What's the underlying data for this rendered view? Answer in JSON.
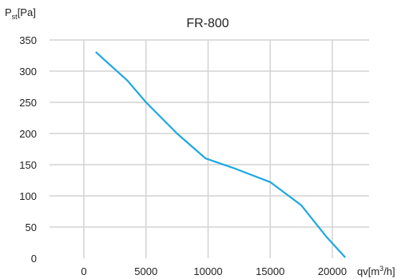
{
  "chart_data": {
    "type": "line",
    "title": "FR-800",
    "ylabel": {
      "main": "P",
      "sub": "st",
      "unit": "[Pa]"
    },
    "xlabel": {
      "main": "qv[m",
      "sup": "3",
      "rest": "/h]"
    },
    "x_ticks": [
      0,
      5000,
      10000,
      15000,
      20000
    ],
    "y_ticks": [
      0,
      50,
      100,
      150,
      200,
      250,
      300,
      350
    ],
    "xlim": [
      0,
      21500
    ],
    "ylim": [
      0,
      350
    ],
    "grid": true,
    "colors": {
      "line": "#1fa8e0",
      "grid": "#d3d3d3",
      "text": "#222222"
    },
    "series": [
      {
        "values": [
          {
            "x": 1000,
            "y": 330
          },
          {
            "x": 3500,
            "y": 285
          },
          {
            "x": 5000,
            "y": 250
          },
          {
            "x": 7500,
            "y": 200
          },
          {
            "x": 9800,
            "y": 160
          },
          {
            "x": 12000,
            "y": 145
          },
          {
            "x": 15000,
            "y": 122
          },
          {
            "x": 17500,
            "y": 85
          },
          {
            "x": 19500,
            "y": 35
          },
          {
            "x": 21000,
            "y": 2
          }
        ]
      }
    ]
  }
}
